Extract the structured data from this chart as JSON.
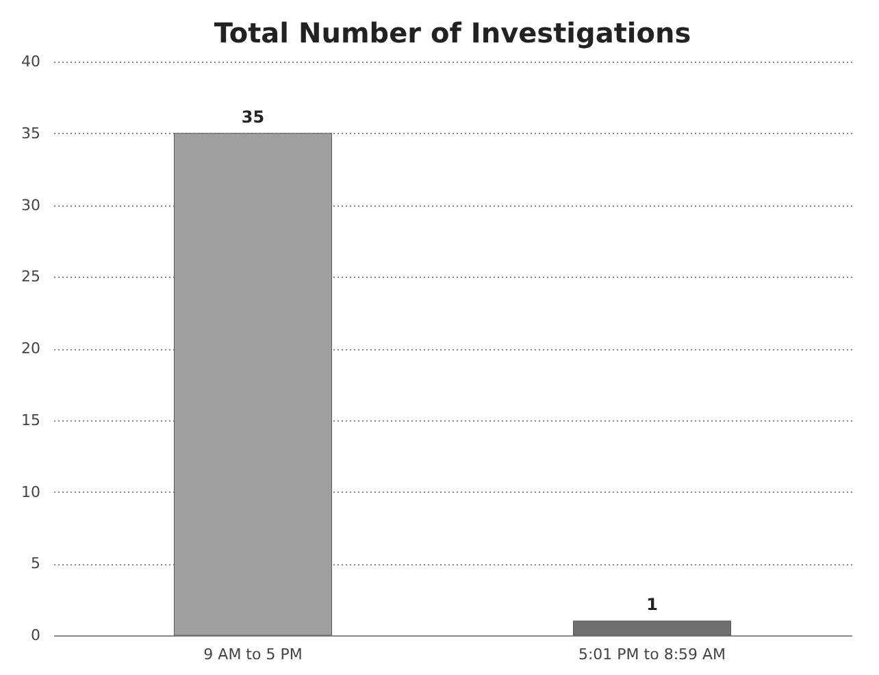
{
  "chart_data": {
    "type": "bar",
    "title": "Total Number of Investigations",
    "categories": [
      "9 AM to 5 PM",
      "5:01 PM to 8:59 AM"
    ],
    "values": [
      35,
      1
    ],
    "colors": [
      "#a0a0a0",
      "#707070"
    ],
    "ylim": [
      0,
      40
    ],
    "yticks": [
      0,
      5,
      10,
      15,
      20,
      25,
      30,
      35,
      40
    ],
    "grid": "y",
    "data_labels": true
  }
}
